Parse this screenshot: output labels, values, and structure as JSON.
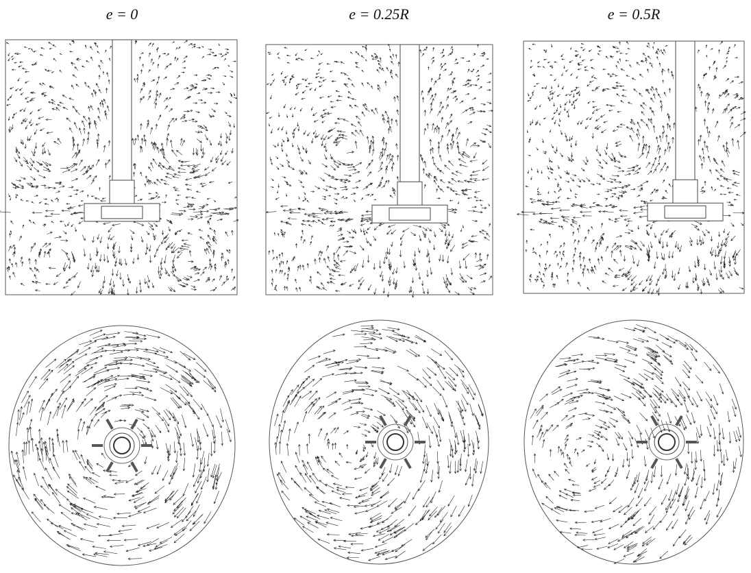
{
  "panels": [
    {
      "label": "e = 0"
    },
    {
      "label": "e = 0.25R"
    },
    {
      "label": "e = 0.5R"
    }
  ]
}
